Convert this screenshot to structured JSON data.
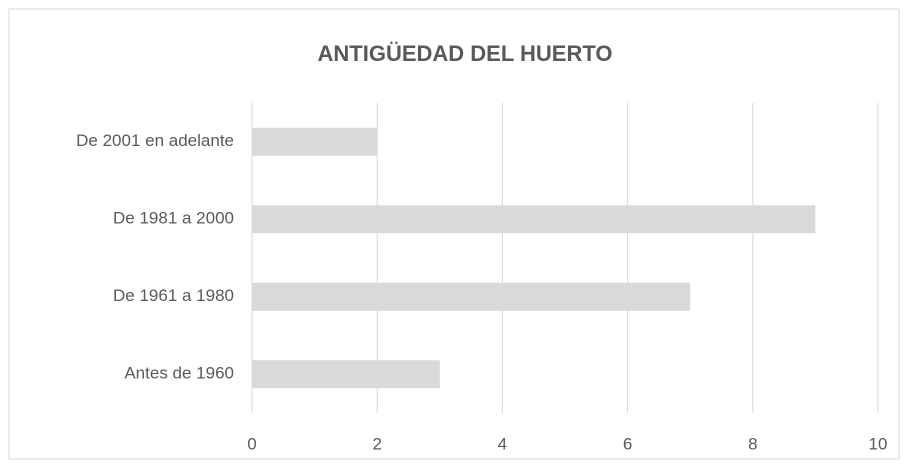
{
  "chart_data": {
    "type": "bar",
    "orientation": "horizontal",
    "title": "ANTIGÜEDAD DEL HUERTO",
    "categories": [
      "De 2001 en adelante",
      "De 1981 a 2000",
      "De 1961 a 1980",
      "Antes de 1960"
    ],
    "values": [
      2,
      9,
      7,
      3
    ],
    "color": "#d9d9d9",
    "xlim": [
      0,
      10
    ],
    "xticks": [
      0,
      2,
      4,
      6,
      8,
      10
    ],
    "grid": true
  }
}
